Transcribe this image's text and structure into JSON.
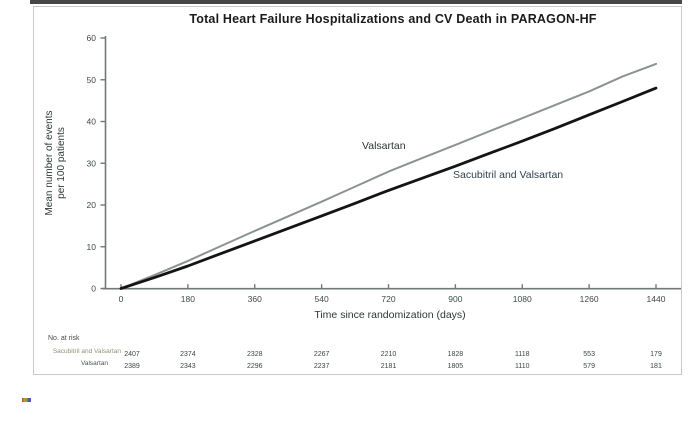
{
  "figure": {
    "title": "Total Heart Failure Hospitalizations and CV Death in PARAGON-HF"
  },
  "chart_data": {
    "type": "line",
    "title": "Total Heart Failure Hospitalizations and CV Death in PARAGON-HF",
    "xlabel": "Time since randomization (days)",
    "ylabel_line1": "Mean number of events",
    "ylabel_line2": "per 100 patients",
    "xlim": [
      0,
      1440
    ],
    "ylim": [
      0,
      60
    ],
    "x_ticks": [
      0,
      180,
      360,
      540,
      720,
      900,
      1080,
      1260,
      1440
    ],
    "y_ticks": [
      0,
      10,
      20,
      30,
      40,
      50,
      60
    ],
    "grid": false,
    "legend_position": "inline-annotations",
    "x": [
      0,
      90,
      180,
      270,
      360,
      450,
      540,
      630,
      720,
      810,
      900,
      990,
      1080,
      1170,
      1260,
      1350,
      1440
    ],
    "series": [
      {
        "name": "Valsartan",
        "color": "#8a938e",
        "stroke_width": 2,
        "values": [
          0,
          3.2,
          6.6,
          10.2,
          13.8,
          17.3,
          20.8,
          24.4,
          28,
          31.2,
          34.4,
          37.6,
          40.8,
          44,
          47.2,
          50.8,
          53.8
        ]
      },
      {
        "name": "Sacubitril and Valsartan",
        "color": "#141414",
        "stroke_width": 2.8,
        "values": [
          0,
          2.6,
          5.4,
          8.4,
          11.4,
          14.4,
          17.4,
          20.4,
          23.5,
          26.4,
          29.3,
          32.3,
          35.3,
          38.4,
          41.6,
          44.8,
          48
        ]
      }
    ],
    "risk_table": {
      "heading": "No. at risk",
      "columns_days": [
        0,
        180,
        360,
        540,
        720,
        900,
        1080,
        1260,
        1440
      ],
      "rows": [
        {
          "label": "Sacubitril and Valsartan",
          "counts": [
            2407,
            2374,
            2328,
            2267,
            2210,
            1828,
            1118,
            553,
            179
          ]
        },
        {
          "label": "Valsartan",
          "counts": [
            2389,
            2343,
            2296,
            2237,
            2181,
            1805,
            1110,
            579,
            181
          ]
        }
      ]
    },
    "colors": {
      "axis": "#6f7a74",
      "tick_label": "#3e4a45",
      "risk_number": "#3a453f"
    }
  }
}
